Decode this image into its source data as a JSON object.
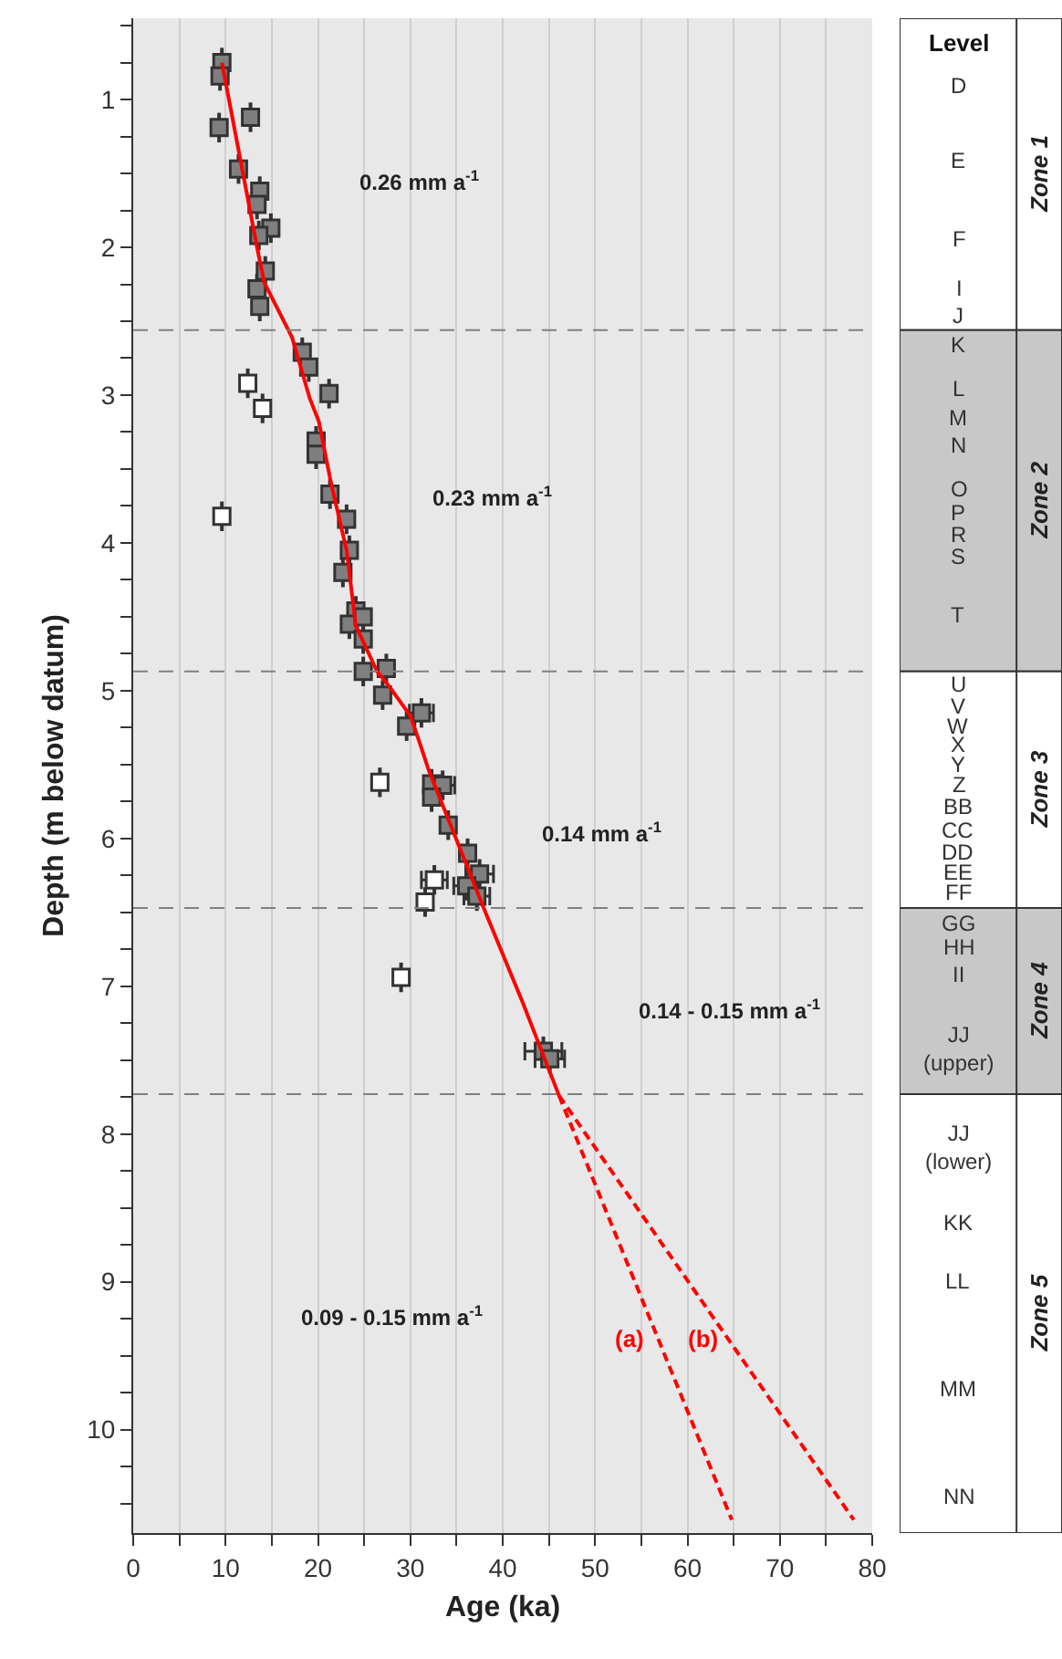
{
  "chart_data": [
    {
      "type": "scatter",
      "xlabel": "Age (ka)",
      "ylabel": "Depth (m below datum)",
      "xlim": [
        0,
        80
      ],
      "ylim": [
        10.7,
        0.45
      ],
      "xticks": [
        0,
        {
          "value": 5,
          "label": null
        },
        10,
        {
          "value": 15,
          "label": null
        },
        20,
        {
          "value": 25,
          "label": null
        },
        30,
        {
          "value": 35,
          "label": null
        },
        40,
        {
          "value": 45,
          "label": null
        },
        50,
        {
          "value": 55,
          "label": null
        },
        60,
        {
          "value": 65,
          "label": null
        },
        70,
        {
          "value": 75,
          "label": null
        },
        80
      ],
      "yticks": [
        {
          "value": 0.5,
          "label": null
        },
        {
          "value": 0.75,
          "label": null
        },
        1,
        {
          "value": 1.25,
          "label": null
        },
        {
          "value": 1.5,
          "label": null
        },
        {
          "value": 1.75,
          "label": null
        },
        2,
        {
          "value": 2.25,
          "label": null
        },
        {
          "value": 2.5,
          "label": null
        },
        {
          "value": 2.75,
          "label": null
        },
        3,
        {
          "value": 3.25,
          "label": null
        },
        {
          "value": 3.5,
          "label": null
        },
        {
          "value": 3.75,
          "label": null
        },
        4,
        {
          "value": 4.25,
          "label": null
        },
        {
          "value": 4.5,
          "label": null
        },
        {
          "value": 4.75,
          "label": null
        },
        5,
        {
          "value": 5.25,
          "label": null
        },
        {
          "value": 5.5,
          "label": null
        },
        {
          "value": 5.75,
          "label": null
        },
        6,
        {
          "value": 6.25,
          "label": null
        },
        {
          "value": 6.5,
          "label": null
        },
        {
          "value": 6.75,
          "label": null
        },
        7,
        {
          "value": 7.25,
          "label": null
        },
        {
          "value": 7.5,
          "label": null
        },
        {
          "value": 7.75,
          "label": null
        },
        8,
        {
          "value": 8.25,
          "label": null
        },
        {
          "value": 8.5,
          "label": null
        },
        {
          "value": 8.75,
          "label": null
        },
        9,
        {
          "value": 9.25,
          "label": null
        },
        {
          "value": 9.5,
          "label": null
        },
        {
          "value": 9.75,
          "label": null
        },
        10,
        {
          "value": 10.25,
          "label": null
        },
        {
          "value": 10.5,
          "label": null
        }
      ],
      "grid": "x",
      "legend": false,
      "series": [
        {
          "type": "scatter",
          "marker": "square",
          "color": "#7f7f7f",
          "x": [
            9.6,
            9.4,
            9.3,
            12.7,
            11.4,
            13.7,
            13.4,
            14.9,
            13.6,
            14.3,
            13.4,
            13.7,
            18.3,
            19.0,
            21.2,
            19.8,
            19.8,
            21.3,
            23.1,
            23.4,
            22.7,
            24.1,
            23.4,
            24.9,
            24.9,
            27.4,
            24.9,
            27.0,
            29.6,
            31.2,
            32.3,
            33.5,
            32.3,
            34.1,
            36.2,
            37.5,
            36.1,
            37.2,
            44.4,
            45.1
          ],
          "values": [
            0.75,
            0.84,
            1.19,
            1.12,
            1.47,
            1.62,
            1.71,
            1.87,
            1.92,
            2.16,
            2.28,
            2.4,
            2.71,
            2.81,
            2.99,
            3.31,
            3.4,
            3.67,
            3.84,
            4.05,
            4.2,
            4.46,
            4.55,
            4.5,
            4.65,
            4.85,
            4.87,
            5.03,
            5.24,
            5.15,
            5.63,
            5.64,
            5.72,
            5.91,
            6.1,
            6.24,
            6.32,
            6.39,
            7.44,
            7.49
          ],
          "errors": [
            0.1,
            0.1,
            0.1,
            0.1,
            0.1,
            0.1,
            0.1,
            0.1,
            0.1,
            0.1,
            0.1,
            0.1,
            0.1,
            0.1,
            0.1,
            0.1,
            0.1,
            0.1,
            0.1,
            0.1,
            0.1,
            0.1,
            0.1,
            0.1,
            0.1,
            0.1,
            0.1,
            0.1,
            0.1,
            0.1,
            0.1,
            0.1,
            0.1,
            0.1,
            0.1,
            0.1,
            0.1,
            0.1,
            0.1,
            0.1
          ],
          "xerrors": [
            null,
            null,
            null,
            null,
            null,
            null,
            null,
            null,
            null,
            null,
            null,
            null,
            null,
            null,
            null,
            null,
            null,
            null,
            null,
            null,
            null,
            null,
            null,
            null,
            null,
            null,
            null,
            null,
            null,
            1.3,
            null,
            1.3,
            null,
            null,
            null,
            1.5,
            1.4,
            1.4,
            2.0,
            1.6
          ]
        },
        {
          "type": "scatter",
          "marker": "square",
          "color": "#ffffff",
          "x": [
            12.4,
            14.0,
            9.6,
            26.7,
            32.6,
            31.6,
            29.0
          ],
          "values": [
            2.92,
            3.09,
            3.82,
            5.62,
            6.28,
            6.43,
            6.94
          ],
          "errors": [
            0.1,
            0.1,
            0.1,
            0.1,
            0.1,
            0.1,
            0.1
          ],
          "xerrors": [
            null,
            null,
            null,
            null,
            1.4,
            null,
            null
          ]
        },
        {
          "type": "line",
          "marker": "none",
          "color": "#ff0000",
          "line_style": "solid",
          "x": [
            9.6,
            13.5,
            14.2,
            17.2,
            19.1,
            20.1,
            21.4,
            23.1,
            24.1,
            26.4,
            27.7,
            30.0,
            31.0,
            32.0,
            38.2,
            42.1,
            46.1
          ],
          "values": [
            0.75,
            2.03,
            2.24,
            2.61,
            3.02,
            3.18,
            3.59,
            4.05,
            4.56,
            4.87,
            4.97,
            5.17,
            5.35,
            5.54,
            6.51,
            7.1,
            7.74
          ]
        },
        {
          "type": "line",
          "marker": "none",
          "name": "(a)",
          "color": "#ff0000",
          "line_style": "dashed",
          "x": [
            46.1,
            64.8
          ],
          "values": [
            7.74,
            10.61
          ]
        },
        {
          "type": "line",
          "marker": "none",
          "name": "(b)",
          "color": "#ff0000",
          "line_style": "dashed",
          "x": [
            46.1,
            78.0
          ],
          "values": [
            7.74,
            10.61
          ]
        }
      ],
      "ref_lines": [
        {
          "axis": "y",
          "value": 2.56,
          "color": "#808080",
          "line_style": "dashed"
        },
        {
          "axis": "y",
          "value": 4.87,
          "color": "#808080",
          "line_style": "dashed"
        },
        {
          "axis": "y",
          "value": 6.47,
          "color": "#808080",
          "line_style": "dashed"
        },
        {
          "axis": "y",
          "value": 7.73,
          "color": "#808080",
          "line_style": "dashed"
        }
      ],
      "annotations": [
        "0.26 mm a$^{-1}$",
        "0.23 mm a$^{-1}$",
        "0.14 mm a$^{-1}$",
        "0.14 - 0.15 mm a$^{-1}$",
        "0.09 - 0.15 mm a$^{-1}$"
      ]
    },
    {
      "type": "other",
      "title": "Level",
      "annotations": [
        "D",
        "E",
        "F",
        "I",
        "J",
        "K",
        "L",
        "M",
        "N",
        "O",
        "P",
        "R",
        "S",
        "T",
        "U",
        "V",
        "W",
        "X",
        "Y",
        "Z",
        "BB",
        "CC",
        "DD",
        "EE",
        "FF",
        "GG",
        "HH",
        "II",
        "JJ\n(upper)",
        "JJ\n(lower)",
        "KK",
        "LL",
        "MM",
        "NN",
        "Zone 1",
        "Zone 2",
        "Zone 3",
        "Zone 4",
        "Zone 5"
      ]
    }
  ]
}
